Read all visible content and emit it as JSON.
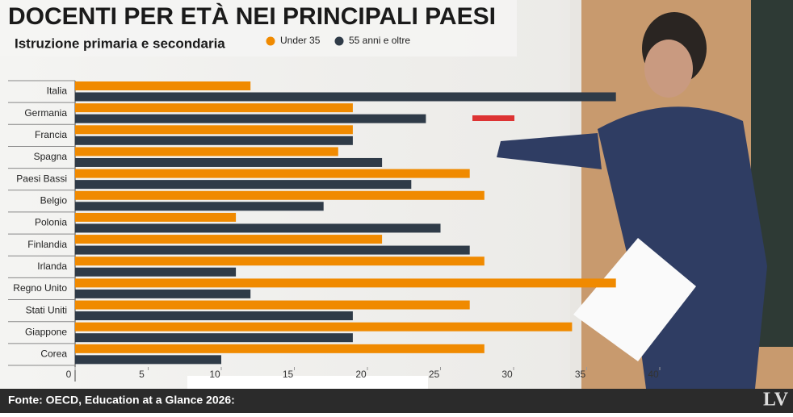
{
  "chart_data": {
    "type": "barh",
    "title": "DOCENTI PER ETÀ NEI PRINCIPALI PAESI",
    "subtitle": "Istruzione primaria e secondaria",
    "categories": [
      "Italia",
      "Germania",
      "Francia",
      "Spagna",
      "Paesi Bassi",
      "Belgio",
      "Polonia",
      "Finlandia",
      "Irlanda",
      "Regno Unito",
      "Stati Uniti",
      "Giappone",
      "Corea"
    ],
    "series": [
      {
        "name": "Under 35",
        "color": "#f08a00",
        "values": [
          12,
          19,
          19,
          18,
          27,
          28,
          11,
          21,
          28,
          37,
          27,
          34,
          28
        ]
      },
      {
        "name": "55 anni e oltre",
        "color": "#2f3b48",
        "values": [
          37,
          24,
          19,
          21,
          23,
          17,
          25,
          27,
          11,
          12,
          19,
          19,
          10
        ]
      }
    ],
    "xlim": [
      0,
      40
    ],
    "xticks": [
      0,
      5,
      10,
      15,
      20,
      25,
      30,
      35,
      40
    ],
    "source": "Fonte: OECD, Education at a Glance 2026:",
    "logo": "LV"
  }
}
